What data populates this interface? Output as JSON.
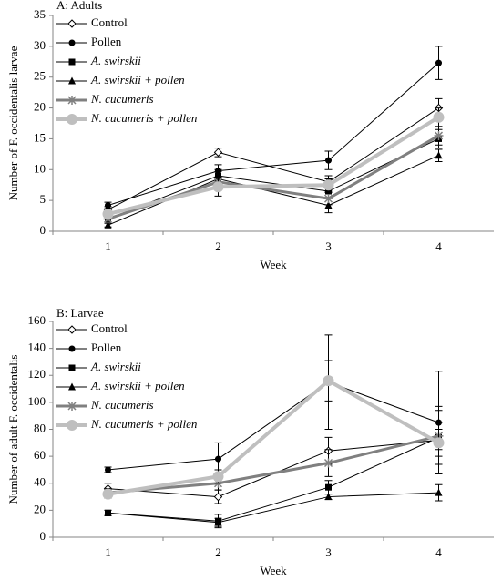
{
  "chart_data": [
    {
      "type": "line",
      "title": "A: Adults",
      "x_label": "Week",
      "y_label": "Number of F. occidentalis larvae",
      "categories": [
        "1",
        "2",
        "3",
        "4"
      ],
      "ylim": [
        0,
        35
      ],
      "yticks": [
        0,
        5,
        10,
        15,
        20,
        25,
        30,
        35
      ],
      "series": [
        {
          "name": "Control",
          "color": "#000000",
          "marker": "diamond-open",
          "line_width": 1,
          "italic": false,
          "values": [
            3.5,
            12.8,
            8,
            20
          ],
          "errors": [
            0.5,
            0.7,
            1,
            1.5
          ]
        },
        {
          "name": "Pollen",
          "color": "#000000",
          "marker": "circle",
          "line_width": 1,
          "italic": false,
          "values": [
            4.2,
            9.8,
            11.5,
            27.3
          ],
          "errors": [
            0.5,
            1,
            1.5,
            2.7
          ]
        },
        {
          "name": "A. swirskii",
          "color": "#000000",
          "marker": "square",
          "line_width": 1,
          "italic": true,
          "values": [
            2,
            9,
            6.5,
            15
          ],
          "errors": [
            0.5,
            1,
            1,
            1.5
          ]
        },
        {
          "name": "A. swirskii + pollen",
          "color": "#000000",
          "marker": "triangle",
          "line_width": 1,
          "italic": true,
          "values": [
            1,
            8.5,
            4.2,
            12.3
          ],
          "errors": [
            0.3,
            1.2,
            1.2,
            1
          ]
        },
        {
          "name": "N. cucumeris",
          "color": "#808080",
          "marker": "asterisk",
          "line_width": 3,
          "italic": true,
          "values": [
            2,
            8,
            5.3,
            15.5
          ],
          "errors": [
            0.5,
            0.8,
            1,
            1.5
          ]
        },
        {
          "name": "N. cucumeris + pollen",
          "color": "#bfbfbf",
          "marker": "circle",
          "line_width": 4,
          "italic": true,
          "values": [
            2.8,
            7.2,
            7.5,
            18.5
          ],
          "errors": [
            0.5,
            1.5,
            1,
            1.5
          ]
        }
      ]
    },
    {
      "type": "line",
      "title": "B: Larvae",
      "x_label": "Week",
      "y_label": "Number of adult F. occidentalis",
      "categories": [
        "1",
        "2",
        "3",
        "4"
      ],
      "ylim": [
        0,
        160
      ],
      "yticks": [
        0,
        20,
        40,
        60,
        80,
        100,
        120,
        140,
        160
      ],
      "series": [
        {
          "name": "Control",
          "color": "#000000",
          "marker": "diamond-open",
          "line_width": 1,
          "italic": false,
          "values": [
            36,
            30,
            64,
            72
          ],
          "errors": [
            4,
            5,
            10,
            25
          ]
        },
        {
          "name": "Pollen",
          "color": "#000000",
          "marker": "circle",
          "line_width": 1,
          "italic": false,
          "values": [
            50,
            58,
            115,
            85
          ],
          "errors": [
            2,
            12,
            35,
            38
          ]
        },
        {
          "name": "A. swirskii",
          "color": "#000000",
          "marker": "square",
          "line_width": 1,
          "italic": true,
          "values": [
            18,
            12,
            37,
            74
          ],
          "errors": [
            2,
            5,
            5,
            20
          ]
        },
        {
          "name": "A. swirskii + pollen",
          "color": "#000000",
          "marker": "triangle",
          "line_width": 1,
          "italic": true,
          "values": [
            18,
            11,
            30,
            33
          ],
          "errors": [
            2,
            3,
            2,
            6
          ]
        },
        {
          "name": "N. cucumeris",
          "color": "#808080",
          "marker": "asterisk",
          "line_width": 3,
          "italic": true,
          "values": [
            33,
            40,
            55,
            75
          ],
          "errors": [
            3,
            5,
            10,
            10
          ]
        },
        {
          "name": "N. cucumeris + pollen",
          "color": "#bfbfbf",
          "marker": "circle",
          "line_width": 4,
          "italic": true,
          "values": [
            32,
            45,
            116,
            70
          ],
          "errors": [
            3,
            5,
            15,
            10
          ]
        }
      ]
    }
  ]
}
